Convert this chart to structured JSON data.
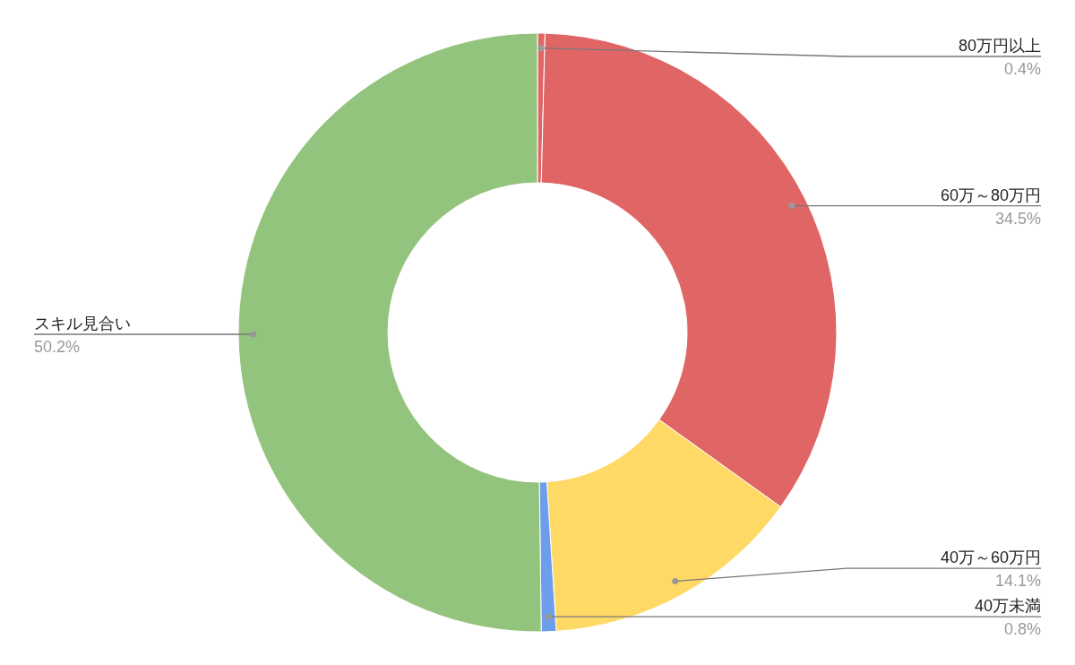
{
  "chart_data": {
    "type": "donut",
    "categories": [
      "80万円以上",
      "60万～80万円",
      "40万～60万円",
      "40万未満",
      "スキル見合い"
    ],
    "values": [
      0.4,
      34.5,
      14.1,
      0.8,
      50.2
    ],
    "value_labels": [
      "0.4%",
      "34.5%",
      "14.1%",
      "0.8%",
      "50.2%"
    ],
    "colors": [
      "#e06666",
      "#e06666",
      "#ffd966",
      "#6d9eeb",
      "#93c47d"
    ],
    "legend": false
  }
}
